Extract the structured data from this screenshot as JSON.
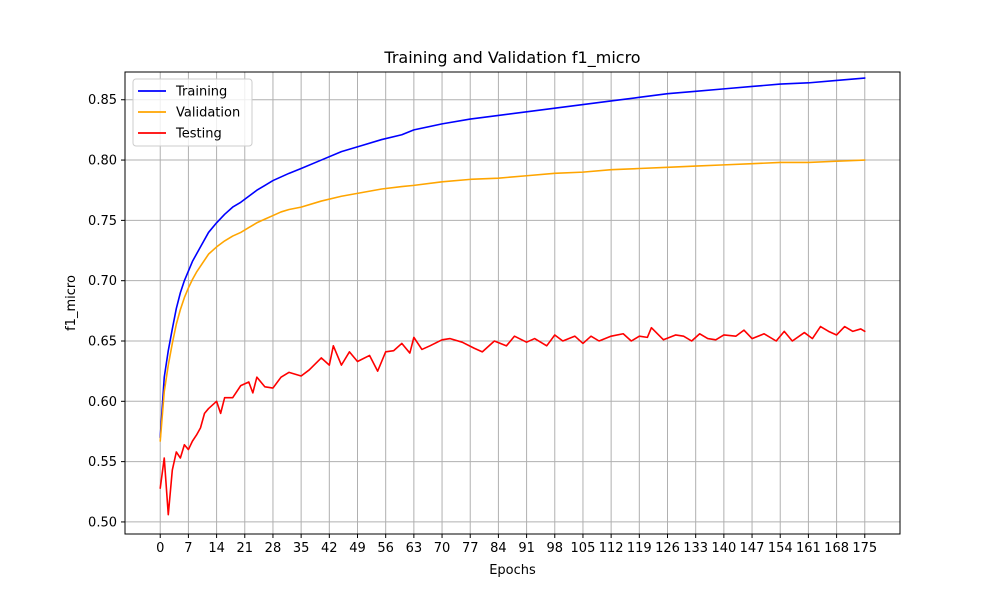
{
  "chart_data": {
    "type": "line",
    "title": "Training and Validation f1_micro",
    "xlabel": "Epochs",
    "ylabel": "f1_micro",
    "xlim": [
      -8.75,
      183.75
    ],
    "ylim": [
      0.49,
      0.873
    ],
    "xticks": [
      0,
      7,
      14,
      21,
      28,
      35,
      42,
      49,
      56,
      63,
      70,
      77,
      84,
      91,
      98,
      105,
      112,
      119,
      126,
      133,
      140,
      147,
      154,
      161,
      168,
      175
    ],
    "yticks": [
      0.5,
      0.55,
      0.6,
      0.65,
      0.7,
      0.75,
      0.8,
      0.85
    ],
    "grid": true,
    "legend_position": "upper-left",
    "series": [
      {
        "name": "Training",
        "color": "#0000ff",
        "x": [
          0,
          1,
          2,
          3,
          4,
          5,
          6,
          7,
          8,
          9,
          10,
          12,
          14,
          16,
          18,
          20,
          22,
          24,
          26,
          28,
          30,
          32,
          35,
          40,
          45,
          50,
          55,
          60,
          63,
          70,
          77,
          84,
          91,
          98,
          105,
          112,
          119,
          126,
          133,
          140,
          147,
          154,
          161,
          168,
          175
        ],
        "values": [
          0.57,
          0.62,
          0.642,
          0.66,
          0.677,
          0.69,
          0.7,
          0.708,
          0.716,
          0.722,
          0.728,
          0.74,
          0.748,
          0.755,
          0.761,
          0.765,
          0.77,
          0.775,
          0.779,
          0.783,
          0.786,
          0.789,
          0.793,
          0.8,
          0.807,
          0.812,
          0.817,
          0.821,
          0.825,
          0.83,
          0.834,
          0.837,
          0.84,
          0.843,
          0.846,
          0.849,
          0.852,
          0.855,
          0.857,
          0.859,
          0.861,
          0.863,
          0.864,
          0.866,
          0.868
        ]
      },
      {
        "name": "Validation",
        "color": "#ffa500",
        "x": [
          0,
          1,
          2,
          3,
          4,
          5,
          6,
          7,
          8,
          9,
          10,
          12,
          14,
          16,
          18,
          20,
          22,
          24,
          26,
          28,
          30,
          32,
          35,
          40,
          45,
          50,
          55,
          60,
          63,
          70,
          77,
          84,
          91,
          98,
          105,
          112,
          119,
          126,
          133,
          140,
          147,
          154,
          161,
          168,
          175
        ],
        "values": [
          0.567,
          0.608,
          0.63,
          0.648,
          0.664,
          0.676,
          0.686,
          0.694,
          0.701,
          0.707,
          0.712,
          0.722,
          0.728,
          0.733,
          0.737,
          0.74,
          0.744,
          0.748,
          0.751,
          0.754,
          0.757,
          0.759,
          0.761,
          0.766,
          0.77,
          0.773,
          0.776,
          0.778,
          0.779,
          0.782,
          0.784,
          0.785,
          0.787,
          0.789,
          0.79,
          0.792,
          0.793,
          0.794,
          0.795,
          0.796,
          0.797,
          0.798,
          0.798,
          0.799,
          0.8
        ]
      },
      {
        "name": "Testing",
        "color": "#ff0000",
        "x": [
          0,
          1,
          2,
          3,
          4,
          5,
          6,
          7,
          8,
          9,
          10,
          11,
          12,
          14,
          15,
          16,
          18,
          20,
          22,
          23,
          24,
          26,
          28,
          30,
          32,
          35,
          37,
          40,
          42,
          43,
          45,
          47,
          49,
          52,
          54,
          56,
          58,
          60,
          62,
          63,
          65,
          67,
          70,
          72,
          75,
          78,
          80,
          83,
          86,
          88,
          91,
          93,
          96,
          98,
          100,
          103,
          105,
          107,
          109,
          112,
          115,
          117,
          119,
          121,
          122,
          125,
          128,
          130,
          132,
          134,
          136,
          138,
          140,
          143,
          145,
          147,
          150,
          153,
          155,
          157,
          160,
          162,
          164,
          166,
          168,
          170,
          172,
          174,
          175
        ],
        "values": [
          0.528,
          0.553,
          0.506,
          0.543,
          0.558,
          0.553,
          0.564,
          0.56,
          0.567,
          0.572,
          0.578,
          0.59,
          0.594,
          0.6,
          0.59,
          0.603,
          0.603,
          0.613,
          0.616,
          0.607,
          0.62,
          0.612,
          0.611,
          0.62,
          0.624,
          0.621,
          0.626,
          0.636,
          0.63,
          0.646,
          0.63,
          0.641,
          0.633,
          0.638,
          0.625,
          0.641,
          0.642,
          0.648,
          0.64,
          0.653,
          0.643,
          0.646,
          0.651,
          0.652,
          0.649,
          0.644,
          0.641,
          0.65,
          0.646,
          0.654,
          0.649,
          0.652,
          0.646,
          0.655,
          0.65,
          0.654,
          0.648,
          0.654,
          0.65,
          0.654,
          0.656,
          0.65,
          0.654,
          0.653,
          0.661,
          0.651,
          0.655,
          0.654,
          0.65,
          0.656,
          0.652,
          0.651,
          0.655,
          0.654,
          0.659,
          0.652,
          0.656,
          0.65,
          0.658,
          0.65,
          0.657,
          0.652,
          0.662,
          0.658,
          0.655,
          0.662,
          0.658,
          0.66,
          0.658
        ]
      }
    ]
  }
}
